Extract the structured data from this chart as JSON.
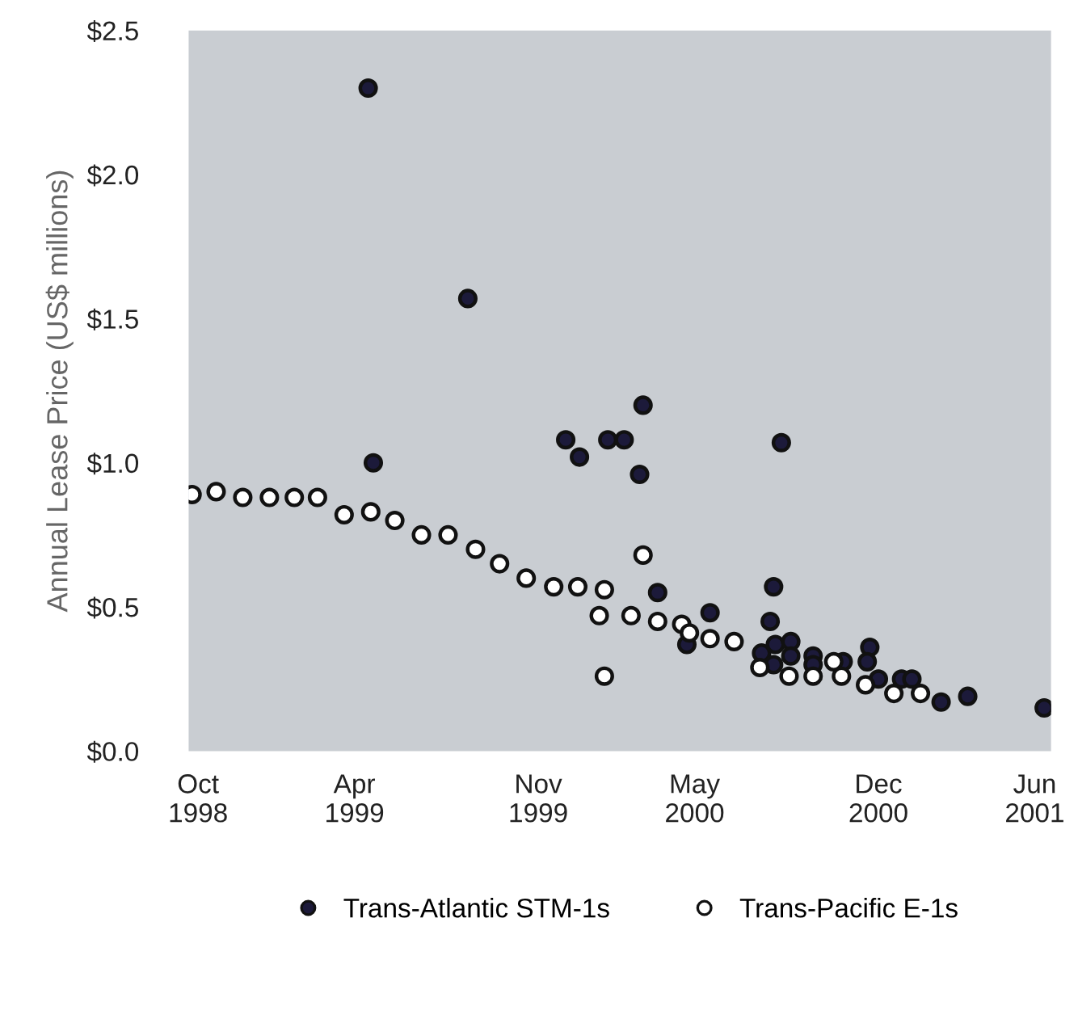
{
  "chart_data": {
    "type": "scatter",
    "ylabel": "Annual Lease Price (US$ millions)",
    "xlim": [
      "1998-09-20",
      "2001-06-20"
    ],
    "xticks": [
      {
        "value": "1998-10-01",
        "label": "Oct\n1998"
      },
      {
        "value": "1999-04-01",
        "label": "Apr\n1999"
      },
      {
        "value": "1999-11-01",
        "label": "Nov\n1999"
      },
      {
        "value": "2000-05-01",
        "label": "May\n2000"
      },
      {
        "value": "2000-12-01",
        "label": "Dec\n2000"
      },
      {
        "value": "2001-06-01",
        "label": "Jun\n2001"
      }
    ],
    "ylim": [
      0,
      2.5
    ],
    "yticks": [
      {
        "value": 0,
        "label": "$0.0"
      },
      {
        "value": 0.5,
        "label": "$0.5"
      },
      {
        "value": 1.0,
        "label": "$1.0"
      },
      {
        "value": 1.5,
        "label": "$1.5"
      },
      {
        "value": 2.0,
        "label": "$2.0"
      },
      {
        "value": 2.5,
        "label": "$2.5"
      }
    ],
    "grid": false,
    "legend": "bottom",
    "marker": "circle",
    "series": [
      {
        "name": "Trans-Atlantic STM-1s",
        "color": "#1c1a3a",
        "x": [
          "1999-04-17",
          "1999-08-11",
          "1999-04-23",
          "2000-03-02",
          "1999-12-03",
          "1999-12-19",
          "2000-01-21",
          "2000-02-09",
          "2000-02-27",
          "2000-08-10",
          "2000-03-19",
          "2000-05-19",
          "2000-04-22",
          "2000-08-01",
          "2000-07-28",
          "2000-07-18",
          "2000-08-03",
          "2000-08-21",
          "2000-08-21",
          "2000-08-01",
          "2000-09-16",
          "2000-09-16",
          "2000-10-21",
          "2000-11-21",
          "2000-11-18",
          "2000-12-01",
          "2000-12-28",
          "2001-01-09",
          "2001-02-12",
          "2001-03-15",
          "2001-06-12"
        ],
        "values": [
          2.3,
          1.57,
          1.0,
          1.2,
          1.08,
          1.02,
          1.08,
          1.08,
          0.96,
          1.07,
          0.55,
          0.48,
          0.37,
          0.57,
          0.45,
          0.34,
          0.37,
          0.38,
          0.33,
          0.3,
          0.33,
          0.3,
          0.31,
          0.36,
          0.31,
          0.25,
          0.25,
          0.25,
          0.17,
          0.19,
          0.15
        ]
      },
      {
        "name": "Trans-Pacific E-1s",
        "color": "#ffffff",
        "x": [
          "1998-09-24",
          "1998-10-22",
          "1998-11-22",
          "1998-12-23",
          "1999-01-21",
          "1999-02-17",
          "1999-03-20",
          "1999-04-20",
          "1999-05-18",
          "1999-06-18",
          "1999-07-19",
          "1999-08-20",
          "1999-09-17",
          "1999-10-18",
          "1999-11-19",
          "1999-12-17",
          "2000-01-17",
          "2000-01-11",
          "2000-02-17",
          "2000-01-17",
          "2000-03-02",
          "2000-03-19",
          "2000-04-16",
          "2000-04-25",
          "2000-05-19",
          "2000-06-16",
          "2000-07-16",
          "2000-08-19",
          "2000-09-16",
          "2000-10-10",
          "2000-10-19",
          "2000-11-16",
          "2000-12-19",
          "2001-01-19"
        ],
        "values": [
          0.89,
          0.9,
          0.88,
          0.88,
          0.88,
          0.88,
          0.82,
          0.83,
          0.8,
          0.75,
          0.75,
          0.7,
          0.65,
          0.6,
          0.57,
          0.57,
          0.56,
          0.47,
          0.47,
          0.26,
          0.68,
          0.45,
          0.44,
          0.41,
          0.39,
          0.38,
          0.29,
          0.26,
          0.26,
          0.31,
          0.26,
          0.23,
          0.2,
          0.2
        ]
      }
    ]
  }
}
